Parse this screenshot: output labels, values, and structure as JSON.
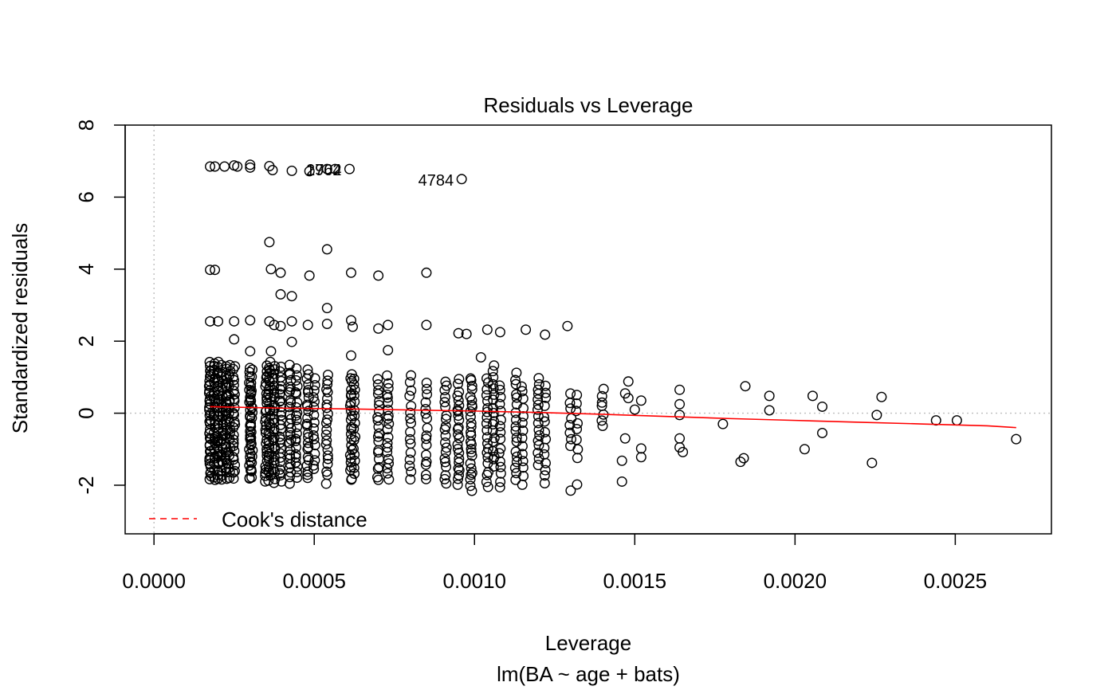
{
  "chart_data": {
    "type": "scatter",
    "title": "Residuals vs Leverage",
    "xlabel": "Leverage",
    "sub_xlabel": "lm(BA ~ age + bats)",
    "ylabel": "Standardized residuals",
    "xlim": [
      -9e-05,
      0.0028
    ],
    "ylim": [
      -3.35,
      8.0
    ],
    "x_ticks": [
      0,
      0.0005,
      0.001,
      0.0015,
      0.002,
      0.0025
    ],
    "x_tick_labels": [
      "0.0000",
      "0.0005",
      "0.0010",
      "0.0015",
      "0.0020",
      "0.0025"
    ],
    "y_ticks": [
      -2,
      0,
      2,
      4,
      6,
      8
    ],
    "y_tick_labels": [
      "-2",
      "0",
      "2",
      "4",
      "6",
      "8"
    ],
    "grid": false,
    "reference_lines": {
      "x": 0,
      "y": 0
    },
    "colors": {
      "points": "#000000",
      "smoother": "#ff0000",
      "reference": "#bebebe",
      "cooks": "#ff0000"
    },
    "legend": {
      "placement": "bottom-left",
      "entries": [
        {
          "label": "Cook's distance",
          "style": "dashed",
          "color": "#ff0000"
        }
      ]
    },
    "columns": [
      {
        "x": 0.000175,
        "ymin": -1.85,
        "ymax": 1.4,
        "n": 40
      },
      {
        "x": 0.000188,
        "ymin": -1.85,
        "ymax": 1.4,
        "n": 30
      },
      {
        "x": 0.0002,
        "ymin": -1.8,
        "ymax": 1.4,
        "n": 30
      },
      {
        "x": 0.000212,
        "ymin": -1.85,
        "ymax": 1.3,
        "n": 26
      },
      {
        "x": 0.000225,
        "ymin": -1.8,
        "ymax": 1.3,
        "n": 26
      },
      {
        "x": 0.000235,
        "ymin": -1.8,
        "ymax": 1.3,
        "n": 22
      },
      {
        "x": 0.00025,
        "ymin": -1.8,
        "ymax": 1.3,
        "n": 26
      },
      {
        "x": 0.0003,
        "ymin": -1.85,
        "ymax": 1.2,
        "n": 30
      },
      {
        "x": 0.000305,
        "ymin": -1.75,
        "ymax": 1.2,
        "n": 18
      },
      {
        "x": 0.00035,
        "ymin": -1.9,
        "ymax": 1.3,
        "n": 28
      },
      {
        "x": 0.00036,
        "ymin": -1.9,
        "ymax": 1.4,
        "n": 30
      },
      {
        "x": 0.000375,
        "ymin": -1.95,
        "ymax": 1.3,
        "n": 26
      },
      {
        "x": 0.000395,
        "ymin": -1.9,
        "ymax": 1.3,
        "n": 26
      },
      {
        "x": 0.000425,
        "ymin": -1.9,
        "ymax": 1.3,
        "n": 26
      },
      {
        "x": 0.000445,
        "ymin": -1.8,
        "ymax": 1.2,
        "n": 22
      },
      {
        "x": 0.00048,
        "ymin": -1.85,
        "ymax": 1.2,
        "n": 24
      },
      {
        "x": 0.0005,
        "ymin": -1.6,
        "ymax": 1.0,
        "n": 16
      },
      {
        "x": 0.00054,
        "ymin": -1.9,
        "ymax": 1.1,
        "n": 22
      },
      {
        "x": 0.000615,
        "ymin": -1.9,
        "ymax": 1.1,
        "n": 24
      },
      {
        "x": 0.000625,
        "ymin": -1.7,
        "ymax": 1.0,
        "n": 16
      },
      {
        "x": 0.0007,
        "ymin": -1.9,
        "ymax": 1.0,
        "n": 20
      },
      {
        "x": 0.00073,
        "ymin": -1.85,
        "ymax": 1.0,
        "n": 20
      },
      {
        "x": 0.0008,
        "ymin": -1.85,
        "ymax": 1.0,
        "n": 16
      },
      {
        "x": 0.00085,
        "ymin": -1.85,
        "ymax": 0.9,
        "n": 16
      },
      {
        "x": 0.00091,
        "ymin": -2.0,
        "ymax": 0.9,
        "n": 20
      },
      {
        "x": 0.00095,
        "ymin": -2.0,
        "ymax": 0.9,
        "n": 24
      },
      {
        "x": 0.00099,
        "ymin": -2.1,
        "ymax": 1.0,
        "n": 26
      },
      {
        "x": 0.00104,
        "ymin": -2.1,
        "ymax": 1.0,
        "n": 20
      },
      {
        "x": 0.00106,
        "ymin": -1.5,
        "ymax": 1.3,
        "n": 18
      },
      {
        "x": 0.00108,
        "ymin": -2.1,
        "ymax": 0.8,
        "n": 16
      },
      {
        "x": 0.00113,
        "ymin": -1.9,
        "ymax": 1.1,
        "n": 18
      },
      {
        "x": 0.00115,
        "ymin": -2.0,
        "ymax": 0.8,
        "n": 14
      },
      {
        "x": 0.0012,
        "ymin": -1.4,
        "ymax": 1.0,
        "n": 16
      },
      {
        "x": 0.00122,
        "ymin": -2.0,
        "ymax": 0.8,
        "n": 14
      },
      {
        "x": 0.0013,
        "ymin": -0.9,
        "ymax": 0.5,
        "n": 8
      },
      {
        "x": 0.00132,
        "ymin": -1.2,
        "ymax": 0.5,
        "n": 8
      },
      {
        "x": 0.0014,
        "ymin": -0.4,
        "ymax": 0.7,
        "n": 7
      }
    ],
    "points": [
      {
        "x": 0.000175,
        "y": 6.85
      },
      {
        "x": 0.00019,
        "y": 6.85
      },
      {
        "x": 0.00022,
        "y": 6.85
      },
      {
        "x": 0.00026,
        "y": 6.85
      },
      {
        "x": 0.00025,
        "y": 6.88
      },
      {
        "x": 0.0003,
        "y": 6.9
      },
      {
        "x": 0.0003,
        "y": 6.82
      },
      {
        "x": 0.00036,
        "y": 6.86
      },
      {
        "x": 0.00037,
        "y": 6.75
      },
      {
        "x": 0.00043,
        "y": 6.73
      },
      {
        "x": 0.000485,
        "y": 6.72
      },
      {
        "x": 0.00054,
        "y": 6.78
      },
      {
        "x": 0.000565,
        "y": 6.78
      },
      {
        "x": 0.00061,
        "y": 6.78
      },
      {
        "x": 0.00096,
        "y": 6.5
      },
      {
        "x": 0.00036,
        "y": 4.75
      },
      {
        "x": 0.00054,
        "y": 4.55
      },
      {
        "x": 0.000175,
        "y": 3.98
      },
      {
        "x": 0.00019,
        "y": 3.98
      },
      {
        "x": 0.000365,
        "y": 4.0
      },
      {
        "x": 0.000395,
        "y": 3.9
      },
      {
        "x": 0.000485,
        "y": 3.82
      },
      {
        "x": 0.000615,
        "y": 3.9
      },
      {
        "x": 0.0007,
        "y": 3.82
      },
      {
        "x": 0.00085,
        "y": 3.9
      },
      {
        "x": 0.000395,
        "y": 3.3
      },
      {
        "x": 0.00043,
        "y": 3.25
      },
      {
        "x": 0.00054,
        "y": 2.92
      },
      {
        "x": 0.000175,
        "y": 2.55
      },
      {
        "x": 0.0002,
        "y": 2.55
      },
      {
        "x": 0.00025,
        "y": 2.55
      },
      {
        "x": 0.0003,
        "y": 2.58
      },
      {
        "x": 0.00036,
        "y": 2.55
      },
      {
        "x": 0.000375,
        "y": 2.45
      },
      {
        "x": 0.000395,
        "y": 2.42
      },
      {
        "x": 0.00043,
        "y": 2.55
      },
      {
        "x": 0.00048,
        "y": 2.45
      },
      {
        "x": 0.00054,
        "y": 2.48
      },
      {
        "x": 0.000615,
        "y": 2.58
      },
      {
        "x": 0.00062,
        "y": 2.4
      },
      {
        "x": 0.0007,
        "y": 2.35
      },
      {
        "x": 0.00073,
        "y": 2.45
      },
      {
        "x": 0.00085,
        "y": 2.45
      },
      {
        "x": 0.00095,
        "y": 2.22
      },
      {
        "x": 0.000975,
        "y": 2.2
      },
      {
        "x": 0.00104,
        "y": 2.32
      },
      {
        "x": 0.00108,
        "y": 2.25
      },
      {
        "x": 0.00116,
        "y": 2.32
      },
      {
        "x": 0.00122,
        "y": 2.18
      },
      {
        "x": 0.00129,
        "y": 2.42
      },
      {
        "x": 0.00025,
        "y": 2.05
      },
      {
        "x": 0.00043,
        "y": 1.98
      },
      {
        "x": 0.0003,
        "y": 1.72
      },
      {
        "x": 0.000365,
        "y": 1.72
      },
      {
        "x": 0.00073,
        "y": 1.75
      },
      {
        "x": 0.000615,
        "y": 1.6
      },
      {
        "x": 0.00102,
        "y": 1.55
      },
      {
        "x": 0.00148,
        "y": 0.88
      },
      {
        "x": 0.00148,
        "y": 0.42
      },
      {
        "x": 0.0015,
        "y": 0.1
      },
      {
        "x": 0.00152,
        "y": 0.35
      },
      {
        "x": 0.00152,
        "y": -0.98
      },
      {
        "x": 0.00152,
        "y": -1.22
      },
      {
        "x": 0.00147,
        "y": 0.55
      },
      {
        "x": 0.00147,
        "y": -0.7
      },
      {
        "x": 0.00146,
        "y": -1.32
      },
      {
        "x": 0.00146,
        "y": -1.9
      },
      {
        "x": 0.0013,
        "y": -2.15
      },
      {
        "x": 0.00132,
        "y": -1.98
      },
      {
        "x": 0.00164,
        "y": 0.65
      },
      {
        "x": 0.00164,
        "y": 0.25
      },
      {
        "x": 0.00164,
        "y": -0.05
      },
      {
        "x": 0.00164,
        "y": -0.7
      },
      {
        "x": 0.00164,
        "y": -0.95
      },
      {
        "x": 0.00165,
        "y": -1.08
      },
      {
        "x": 0.001775,
        "y": -0.3
      },
      {
        "x": 0.001845,
        "y": 0.75
      },
      {
        "x": 0.00184,
        "y": -1.25
      },
      {
        "x": 0.00183,
        "y": -1.35
      },
      {
        "x": 0.00192,
        "y": 0.48
      },
      {
        "x": 0.00192,
        "y": 0.08
      },
      {
        "x": 0.00203,
        "y": -1.0
      },
      {
        "x": 0.002055,
        "y": 0.48
      },
      {
        "x": 0.002085,
        "y": 0.18
      },
      {
        "x": 0.002085,
        "y": -0.55
      },
      {
        "x": 0.00224,
        "y": -1.38
      },
      {
        "x": 0.002255,
        "y": -0.05
      },
      {
        "x": 0.00227,
        "y": 0.45
      },
      {
        "x": 0.00244,
        "y": -0.2
      },
      {
        "x": 0.002505,
        "y": -0.2
      },
      {
        "x": 0.00269,
        "y": -0.72
      }
    ],
    "labeled_points": [
      {
        "x": 0.00061,
        "y": 6.78,
        "label": "1762"
      },
      {
        "x": 0.00061,
        "y": 6.78,
        "label": "2904"
      },
      {
        "x": 0.00096,
        "y": 6.5,
        "label": "4784"
      }
    ],
    "smoother": {
      "x": [
        0.000175,
        0.0004,
        0.0006,
        0.0008,
        0.001,
        0.0012,
        0.0014,
        0.0016,
        0.0018,
        0.002,
        0.0022,
        0.0024,
        0.0026,
        0.00269
      ],
      "y": [
        0.18,
        0.14,
        0.12,
        0.09,
        0.06,
        0.02,
        -0.03,
        -0.09,
        -0.15,
        -0.2,
        -0.25,
        -0.3,
        -0.35,
        -0.4
      ]
    }
  }
}
